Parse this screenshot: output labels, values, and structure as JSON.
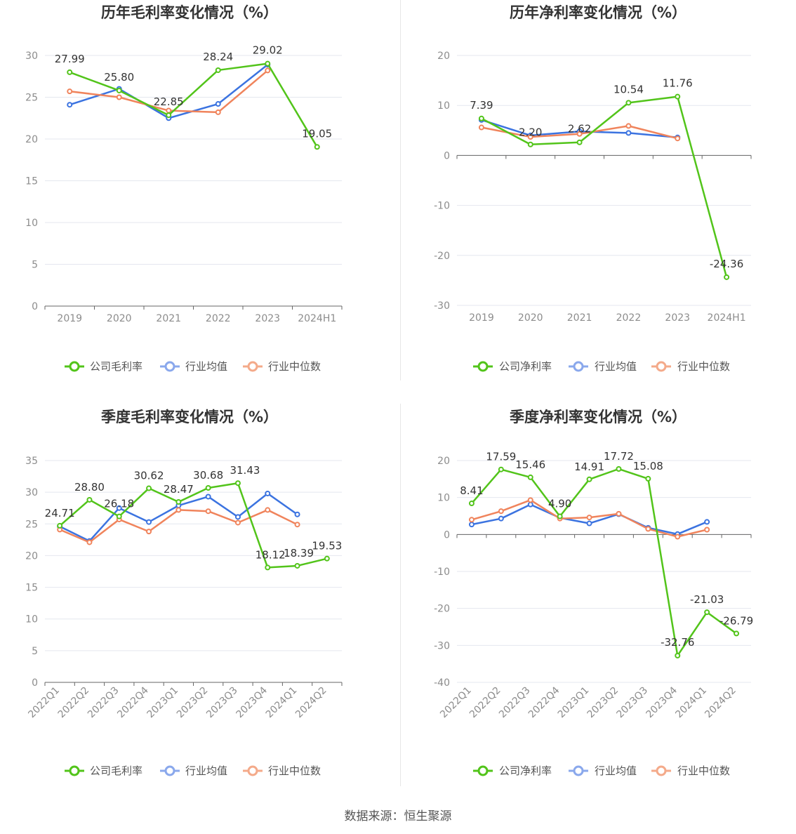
{
  "colors": {
    "company": "#52c41a",
    "avg": "#3b73e0",
    "median": "#f0845c",
    "grid": "#e4e7ef",
    "axis": "#666666"
  },
  "legend": {
    "gross": [
      "公司毛利率",
      "行业均值",
      "行业中位数"
    ],
    "net": [
      "公司净利率",
      "行业均值",
      "行业中位数"
    ]
  },
  "footer": {
    "source": "数据来源：恒生聚源"
  },
  "chart_data": [
    {
      "id": "annual-gross",
      "type": "line",
      "title": "历年毛利率变化情况（%）",
      "categories": [
        "2019",
        "2020",
        "2021",
        "2022",
        "2023",
        "2024H1"
      ],
      "ylim": [
        0,
        30
      ],
      "yticks": [
        0,
        5,
        10,
        15,
        20,
        25,
        30
      ],
      "series": [
        {
          "name": "公司毛利率",
          "values": [
            27.99,
            25.8,
            22.85,
            28.24,
            29.02,
            19.05
          ],
          "labels": [
            "27.99",
            "25.80",
            "22.85",
            "28.24",
            "29.02",
            "19.05"
          ]
        },
        {
          "name": "行业均值",
          "values": [
            24.1,
            26.0,
            22.5,
            24.2,
            28.9,
            null
          ]
        },
        {
          "name": "行业中位数",
          "values": [
            25.7,
            25.0,
            23.4,
            23.2,
            28.2,
            null
          ]
        }
      ]
    },
    {
      "id": "annual-net",
      "type": "line",
      "title": "历年净利率变化情况（%）",
      "categories": [
        "2019",
        "2020",
        "2021",
        "2022",
        "2023",
        "2024H1"
      ],
      "ylim": [
        -30,
        20
      ],
      "yticks": [
        -30,
        -20,
        -10,
        0,
        10,
        20
      ],
      "series": [
        {
          "name": "公司净利率",
          "values": [
            7.39,
            2.2,
            2.62,
            10.54,
            11.76,
            -24.36
          ],
          "labels": [
            "7.39",
            "2.20",
            "2.62",
            "10.54",
            "11.76",
            "-24.36"
          ]
        },
        {
          "name": "行业均值",
          "values": [
            7.1,
            4.0,
            4.8,
            4.5,
            3.6,
            null
          ]
        },
        {
          "name": "行业中位数",
          "values": [
            5.6,
            3.7,
            4.3,
            5.9,
            3.4,
            null
          ]
        }
      ]
    },
    {
      "id": "quarter-gross",
      "type": "line",
      "title": "季度毛利率变化情况（%）",
      "categories": [
        "2022Q1",
        "2022Q2",
        "2022Q3",
        "2022Q4",
        "2023Q1",
        "2023Q2",
        "2023Q3",
        "2023Q4",
        "2024Q1",
        "2024Q2"
      ],
      "ylim": [
        0,
        35
      ],
      "yticks": [
        0,
        5,
        10,
        15,
        20,
        25,
        30,
        35
      ],
      "series": [
        {
          "name": "公司毛利率",
          "values": [
            24.71,
            28.8,
            26.18,
            30.62,
            28.47,
            30.68,
            31.43,
            18.12,
            18.39,
            19.53
          ],
          "labels": [
            "24.71",
            "28.80",
            "26.18",
            "30.62",
            "28.47",
            "30.68",
            "31.43",
            "18.12",
            "18.39",
            "19.53"
          ]
        },
        {
          "name": "行业均值",
          "values": [
            24.6,
            22.3,
            27.5,
            25.3,
            27.9,
            29.3,
            26.1,
            29.8,
            26.5,
            null
          ]
        },
        {
          "name": "行业中位数",
          "values": [
            24.1,
            22.1,
            25.7,
            23.8,
            27.2,
            27.0,
            25.2,
            27.2,
            24.9,
            null
          ]
        }
      ]
    },
    {
      "id": "quarter-net",
      "type": "line",
      "title": "季度净利率变化情况（%）",
      "categories": [
        "2022Q1",
        "2022Q2",
        "2022Q3",
        "2022Q4",
        "2023Q1",
        "2023Q2",
        "2023Q3",
        "2023Q4",
        "2024Q1",
        "2024Q2"
      ],
      "ylim": [
        -40,
        20
      ],
      "yticks": [
        -40,
        -30,
        -20,
        -10,
        0,
        10,
        20
      ],
      "series": [
        {
          "name": "公司净利率",
          "values": [
            8.41,
            17.59,
            15.46,
            4.9,
            14.91,
            17.72,
            15.08,
            -32.76,
            -21.03,
            -26.79
          ],
          "labels": [
            "8.41",
            "17.59",
            "15.46",
            "4.90",
            "14.91",
            "17.72",
            "15.08",
            "-32.76",
            "-21.03",
            "-26.79"
          ]
        },
        {
          "name": "行业均值",
          "values": [
            2.7,
            4.3,
            8.1,
            4.5,
            3.0,
            5.5,
            1.8,
            0.1,
            3.4,
            null
          ]
        },
        {
          "name": "行业中位数",
          "values": [
            4.0,
            6.3,
            9.3,
            4.3,
            4.6,
            5.6,
            1.5,
            -0.6,
            1.3,
            null
          ]
        }
      ]
    }
  ]
}
